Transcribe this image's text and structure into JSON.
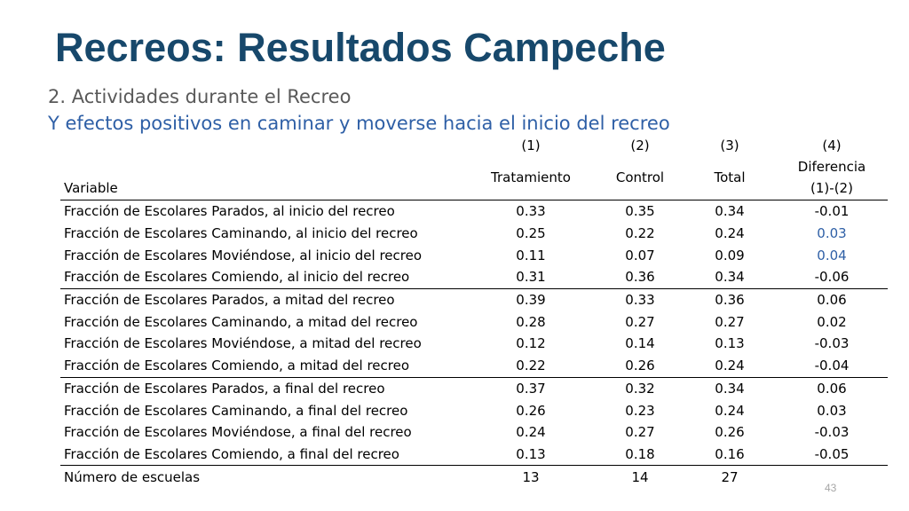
{
  "title": "Recreos: Resultados Campeche",
  "subtitle": "2. Actividades durante el Recreo",
  "subtitle2": "Y efectos positivos en caminar y moverse hacia el inicio del recreo",
  "table": {
    "col_numbers": [
      "(1)",
      "(2)",
      "(3)",
      "(4)"
    ],
    "header_variable": "Variable",
    "header_cols": [
      "Tratamiento",
      "Control",
      "Total"
    ],
    "header_col4_line1": "Diferencia",
    "header_col4_line2": "(1)-(2)",
    "rows": [
      {
        "label": "Fracción de Escolares Parados, al inicio del recreo",
        "v": [
          "0.33",
          "0.35",
          "0.34",
          "-0.01"
        ]
      },
      {
        "label": "Fracción de Escolares Caminando, al inicio del recreo",
        "v": [
          "0.25",
          "0.22",
          "0.24",
          "0.03"
        ]
      },
      {
        "label": "Fracción de Escolares Moviéndose, al inicio del recreo",
        "v": [
          "0.11",
          "0.07",
          "0.09",
          "0.04"
        ]
      },
      {
        "label": "Fracción de Escolares Comiendo, al inicio del recreo",
        "v": [
          "0.31",
          "0.36",
          "0.34",
          "-0.06"
        ]
      },
      {
        "label": "Fracción de Escolares Parados, a mitad del recreo",
        "v": [
          "0.39",
          "0.33",
          "0.36",
          "0.06"
        ]
      },
      {
        "label": "Fracción de Escolares Caminando, a mitad del recreo",
        "v": [
          "0.28",
          "0.27",
          "0.27",
          "0.02"
        ]
      },
      {
        "label": "Fracción de Escolares Moviéndose, a mitad del recreo",
        "v": [
          "0.12",
          "0.14",
          "0.13",
          "-0.03"
        ]
      },
      {
        "label": "Fracción de Escolares Comiendo, a mitad del recreo",
        "v": [
          "0.22",
          "0.26",
          "0.24",
          "-0.04"
        ]
      },
      {
        "label": "Fracción de Escolares Parados, a final del recreo",
        "v": [
          "0.37",
          "0.32",
          "0.34",
          "0.06"
        ]
      },
      {
        "label": "Fracción de Escolares Caminando, a final del recreo",
        "v": [
          "0.26",
          "0.23",
          "0.24",
          "0.03"
        ]
      },
      {
        "label": "Fracción de Escolares Moviéndose, a final del recreo",
        "v": [
          "0.24",
          "0.27",
          "0.26",
          "-0.03"
        ]
      },
      {
        "label": "Fracción de Escolares Comiendo, a final del recreo",
        "v": [
          "0.13",
          "0.18",
          "0.16",
          "-0.05"
        ]
      },
      {
        "label": "Número de escuelas",
        "v": [
          "13",
          "14",
          "27",
          ""
        ]
      }
    ]
  },
  "highlight_color": "#2e5fa6",
  "page_number": "43"
}
